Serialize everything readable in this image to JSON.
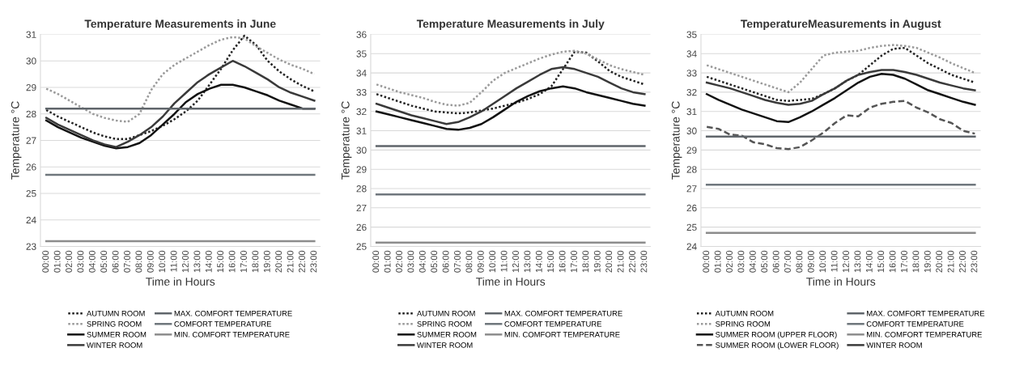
{
  "chart_data": [
    {
      "type": "line",
      "title": "Temperature Measurements in June",
      "xlabel": "Time in Hours",
      "ylabel": "Temperature °C",
      "categories": [
        "00:00",
        "01:00",
        "02:00",
        "03:00",
        "04:00",
        "05:00",
        "06:00",
        "07:00",
        "08:00",
        "09:00",
        "10:00",
        "11:00",
        "12:00",
        "13:00",
        "14:00",
        "15:00",
        "16:00",
        "17:00",
        "18:00",
        "19:00",
        "20:00",
        "21:00",
        "22:00",
        "23:00"
      ],
      "ylim": [
        23,
        31
      ],
      "yticks": [
        23,
        24,
        25,
        26,
        27,
        28,
        29,
        30,
        31
      ],
      "grid": "y",
      "legend": "bottom",
      "marker": "none",
      "series": [
        {
          "name": "AUTUMN ROOM",
          "color": "#222222",
          "line_style": "dotted",
          "values": [
            28.15,
            27.9,
            27.7,
            27.5,
            27.3,
            27.15,
            27.05,
            27.05,
            27.2,
            27.35,
            27.55,
            27.8,
            28.1,
            28.5,
            29.1,
            29.7,
            30.4,
            30.95,
            30.6,
            30.0,
            29.6,
            29.3,
            29.05,
            28.85
          ]
        },
        {
          "name": "SPRING ROOM",
          "color": "#9a9a9a",
          "line_style": "dotted",
          "values": [
            28.95,
            28.75,
            28.5,
            28.25,
            28.0,
            27.85,
            27.75,
            27.7,
            28.0,
            28.9,
            29.5,
            29.85,
            30.1,
            30.35,
            30.6,
            30.8,
            30.9,
            30.85,
            30.55,
            30.3,
            30.05,
            29.85,
            29.7,
            29.5
          ]
        },
        {
          "name": "SUMMER ROOM",
          "color": "#111111",
          "line_style": "solid",
          "values": [
            27.75,
            27.5,
            27.3,
            27.1,
            26.95,
            26.8,
            26.7,
            26.75,
            26.9,
            27.2,
            27.6,
            28.0,
            28.45,
            28.75,
            28.95,
            29.1,
            29.1,
            29.0,
            28.85,
            28.7,
            28.5,
            28.35,
            28.2,
            28.2
          ]
        },
        {
          "name": "WINTER ROOM",
          "color": "#3a3a3a",
          "line_style": "solid",
          "values": [
            27.85,
            27.6,
            27.4,
            27.2,
            27.0,
            26.85,
            26.75,
            26.95,
            27.2,
            27.5,
            27.9,
            28.4,
            28.8,
            29.2,
            29.5,
            29.75,
            30.0,
            29.8,
            29.55,
            29.3,
            29.0,
            28.8,
            28.65,
            28.5
          ]
        },
        {
          "name": "MAX. COMFORT TEMPERATURE",
          "color": "#5f656a",
          "line_style": "solid",
          "values": [
            28.2,
            28.2,
            28.2,
            28.2,
            28.2,
            28.2,
            28.2,
            28.2,
            28.2,
            28.2,
            28.2,
            28.2,
            28.2,
            28.2,
            28.2,
            28.2,
            28.2,
            28.2,
            28.2,
            28.2,
            28.2,
            28.2,
            28.2,
            28.2
          ]
        },
        {
          "name": "COMFORT TEMPERATURE",
          "color": "#6f777d",
          "line_style": "solid",
          "values": [
            25.7,
            25.7,
            25.7,
            25.7,
            25.7,
            25.7,
            25.7,
            25.7,
            25.7,
            25.7,
            25.7,
            25.7,
            25.7,
            25.7,
            25.7,
            25.7,
            25.7,
            25.7,
            25.7,
            25.7,
            25.7,
            25.7,
            25.7,
            25.7
          ]
        },
        {
          "name": "MIN. COMFORT TEMPERATURE",
          "color": "#8c8c8c",
          "line_style": "solid",
          "values": [
            23.2,
            23.2,
            23.2,
            23.2,
            23.2,
            23.2,
            23.2,
            23.2,
            23.2,
            23.2,
            23.2,
            23.2,
            23.2,
            23.2,
            23.2,
            23.2,
            23.2,
            23.2,
            23.2,
            23.2,
            23.2,
            23.2,
            23.2,
            23.2
          ]
        }
      ]
    },
    {
      "type": "line",
      "title": "Temperature Measurements in July",
      "xlabel": "Time in Hours",
      "ylabel": "Temperature °C",
      "categories": [
        "00:00",
        "01:00",
        "02:00",
        "03:00",
        "04:00",
        "05:00",
        "06:00",
        "07:00",
        "08:00",
        "09:00",
        "10:00",
        "11:00",
        "12:00",
        "13:00",
        "14:00",
        "15:00",
        "16:00",
        "17:00",
        "18:00",
        "19:00",
        "20:00",
        "21:00",
        "22:00",
        "23:00"
      ],
      "ylim": [
        25,
        36
      ],
      "yticks": [
        25,
        26,
        27,
        28,
        29,
        30,
        31,
        32,
        33,
        34,
        35,
        36
      ],
      "grid": "y",
      "legend": "bottom",
      "marker": "none",
      "series": [
        {
          "name": "AUTUMN ROOM",
          "color": "#222222",
          "line_style": "dotted",
          "values": [
            32.9,
            32.7,
            32.5,
            32.3,
            32.15,
            32.0,
            31.95,
            31.9,
            31.95,
            32.05,
            32.15,
            32.3,
            32.45,
            32.65,
            32.9,
            33.3,
            34.2,
            35.1,
            35.05,
            34.6,
            34.1,
            33.8,
            33.6,
            33.4
          ]
        },
        {
          "name": "SPRING ROOM",
          "color": "#9a9a9a",
          "line_style": "dotted",
          "values": [
            33.4,
            33.2,
            33.0,
            32.85,
            32.7,
            32.5,
            32.35,
            32.3,
            32.45,
            33.0,
            33.6,
            34.0,
            34.25,
            34.5,
            34.75,
            34.95,
            35.1,
            35.15,
            35.0,
            34.7,
            34.4,
            34.2,
            34.05,
            33.9
          ]
        },
        {
          "name": "SUMMER ROOM",
          "color": "#111111",
          "line_style": "solid",
          "values": [
            32.0,
            31.85,
            31.7,
            31.55,
            31.4,
            31.25,
            31.1,
            31.05,
            31.15,
            31.35,
            31.7,
            32.1,
            32.5,
            32.8,
            33.05,
            33.2,
            33.3,
            33.2,
            33.0,
            32.85,
            32.7,
            32.55,
            32.4,
            32.3
          ]
        },
        {
          "name": "WINTER ROOM",
          "color": "#3a3a3a",
          "line_style": "solid",
          "values": [
            32.4,
            32.2,
            32.0,
            31.8,
            31.65,
            31.5,
            31.35,
            31.45,
            31.7,
            32.0,
            32.4,
            32.8,
            33.2,
            33.55,
            33.9,
            34.2,
            34.3,
            34.2,
            34.0,
            33.8,
            33.5,
            33.2,
            33.0,
            32.9
          ]
        },
        {
          "name": "MAX. COMFORT TEMPERATURE",
          "color": "#5f656a",
          "line_style": "solid",
          "values": [
            30.2,
            30.2,
            30.2,
            30.2,
            30.2,
            30.2,
            30.2,
            30.2,
            30.2,
            30.2,
            30.2,
            30.2,
            30.2,
            30.2,
            30.2,
            30.2,
            30.2,
            30.2,
            30.2,
            30.2,
            30.2,
            30.2,
            30.2,
            30.2
          ]
        },
        {
          "name": "COMFORT TEMPERATURE",
          "color": "#6f777d",
          "line_style": "solid",
          "values": [
            27.7,
            27.7,
            27.7,
            27.7,
            27.7,
            27.7,
            27.7,
            27.7,
            27.7,
            27.7,
            27.7,
            27.7,
            27.7,
            27.7,
            27.7,
            27.7,
            27.7,
            27.7,
            27.7,
            27.7,
            27.7,
            27.7,
            27.7,
            27.7
          ]
        },
        {
          "name": "MIN. COMFORT TEMPERATURE",
          "color": "#8c8c8c",
          "line_style": "solid",
          "values": [
            25.2,
            25.2,
            25.2,
            25.2,
            25.2,
            25.2,
            25.2,
            25.2,
            25.2,
            25.2,
            25.2,
            25.2,
            25.2,
            25.2,
            25.2,
            25.2,
            25.2,
            25.2,
            25.2,
            25.2,
            25.2,
            25.2,
            25.2,
            25.2
          ]
        }
      ]
    },
    {
      "type": "line",
      "title": "TemperatureMeasurements in August",
      "xlabel": "Time in Hours",
      "ylabel": "Temperature °C",
      "categories": [
        "00:00",
        "01:00",
        "02:00",
        "03:00",
        "04:00",
        "05:00",
        "06:00",
        "07:00",
        "08:00",
        "09:00",
        "10:00",
        "11:00",
        "12:00",
        "13:00",
        "14:00",
        "15:00",
        "16:00",
        "17:00",
        "18:00",
        "19:00",
        "20:00",
        "21:00",
        "22:00",
        "23:00"
      ],
      "ylim": [
        24,
        35
      ],
      "yticks": [
        24,
        25,
        26,
        27,
        28,
        29,
        30,
        31,
        32,
        33,
        34,
        35
      ],
      "grid": "y",
      "legend": "bottom",
      "marker": "none",
      "series": [
        {
          "name": "AUTUMN ROOM",
          "color": "#222222",
          "line_style": "dotted",
          "values": [
            32.8,
            32.6,
            32.4,
            32.2,
            32.0,
            31.8,
            31.6,
            31.55,
            31.6,
            31.65,
            31.9,
            32.2,
            32.6,
            32.9,
            33.4,
            33.9,
            34.25,
            34.3,
            33.9,
            33.5,
            33.2,
            32.9,
            32.7,
            32.5
          ]
        },
        {
          "name": "SPRING ROOM",
          "color": "#9a9a9a",
          "line_style": "dotted",
          "values": [
            33.4,
            33.2,
            33.0,
            32.8,
            32.6,
            32.4,
            32.2,
            32.0,
            32.5,
            33.2,
            33.9,
            34.05,
            34.1,
            34.15,
            34.3,
            34.4,
            34.45,
            34.4,
            34.3,
            34.05,
            33.8,
            33.5,
            33.25,
            33.0
          ]
        },
        {
          "name": "SUMMER ROOM (UPPER FLOOR)",
          "color": "#111111",
          "line_style": "solid",
          "values": [
            31.9,
            31.6,
            31.35,
            31.1,
            30.9,
            30.7,
            30.5,
            30.45,
            30.7,
            31.0,
            31.35,
            31.7,
            32.1,
            32.5,
            32.8,
            32.95,
            32.9,
            32.7,
            32.4,
            32.1,
            31.9,
            31.7,
            31.5,
            31.35
          ]
        },
        {
          "name": "SUMMER ROOM (LOWER FLOOR)",
          "color": "#555555",
          "line_style": "dashed",
          "values": [
            30.2,
            30.1,
            29.8,
            29.75,
            29.4,
            29.3,
            29.1,
            29.05,
            29.15,
            29.5,
            29.9,
            30.4,
            30.8,
            30.75,
            31.2,
            31.4,
            31.5,
            31.55,
            31.2,
            30.95,
            30.6,
            30.4,
            30.0,
            29.85
          ]
        },
        {
          "name": "MAX. COMFORT TEMPERATURE",
          "color": "#5f656a",
          "line_style": "solid",
          "values": [
            29.7,
            29.7,
            29.7,
            29.7,
            29.7,
            29.7,
            29.7,
            29.7,
            29.7,
            29.7,
            29.7,
            29.7,
            29.7,
            29.7,
            29.7,
            29.7,
            29.7,
            29.7,
            29.7,
            29.7,
            29.7,
            29.7,
            29.7,
            29.7
          ]
        },
        {
          "name": "COMFORT TEMPERATURE",
          "color": "#6f777d",
          "line_style": "solid",
          "values": [
            27.2,
            27.2,
            27.2,
            27.2,
            27.2,
            27.2,
            27.2,
            27.2,
            27.2,
            27.2,
            27.2,
            27.2,
            27.2,
            27.2,
            27.2,
            27.2,
            27.2,
            27.2,
            27.2,
            27.2,
            27.2,
            27.2,
            27.2,
            27.2
          ]
        },
        {
          "name": "MIN. COMFORT TEMPERATURE",
          "color": "#8c8c8c",
          "line_style": "solid",
          "values": [
            24.7,
            24.7,
            24.7,
            24.7,
            24.7,
            24.7,
            24.7,
            24.7,
            24.7,
            24.7,
            24.7,
            24.7,
            24.7,
            24.7,
            24.7,
            24.7,
            24.7,
            24.7,
            24.7,
            24.7,
            24.7,
            24.7,
            24.7,
            24.7
          ]
        },
        {
          "name": "WINTER ROOM",
          "color": "#3a3a3a",
          "line_style": "solid",
          "values": [
            32.5,
            32.35,
            32.2,
            32.0,
            31.8,
            31.6,
            31.45,
            31.35,
            31.4,
            31.55,
            31.9,
            32.2,
            32.6,
            32.9,
            33.05,
            33.15,
            33.15,
            33.05,
            32.9,
            32.7,
            32.5,
            32.35,
            32.2,
            32.1
          ]
        }
      ]
    }
  ]
}
